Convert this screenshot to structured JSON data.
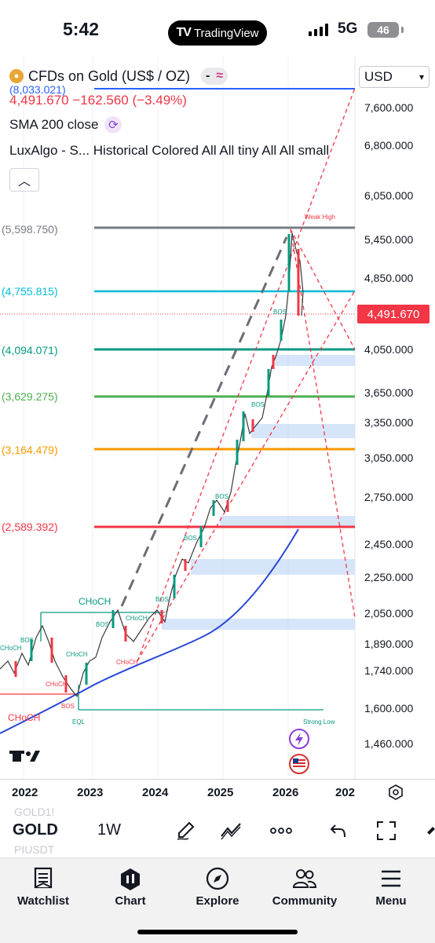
{
  "status": {
    "time": "5:42",
    "app_badge": "TradingView",
    "network": "5G",
    "battery": "46"
  },
  "legend": {
    "symbol_title": "CFDs on Gold (US$ / OZ)",
    "pill_btn1": "-",
    "pill_btn2": "≈",
    "top_value": "8,033.021",
    "price": "4,491.670",
    "change": "−162.560",
    "change_pct": "(−3.49%)",
    "sma": "SMA 200 close",
    "lux": "LuxAlgo - S...  Historical Colored All All tiny All All small"
  },
  "currency": "USD",
  "price_axis": {
    "ticks": [
      "7,600.000",
      "6,800.000",
      "6,050.000",
      "5,450.000",
      "4,850.000",
      "4,050.000",
      "3,650.000",
      "3,350.000",
      "3,050.000",
      "2,750.000",
      "2,450.000",
      "2,250.000",
      "2,050.000",
      "1,890.000",
      "1,740.000",
      "1,600.000",
      "1,460.000"
    ],
    "last_price": "4,491.670",
    "last_price_color": "#f23645"
  },
  "levels": [
    {
      "label": "(8,033.021)",
      "color": "#2962ff"
    },
    {
      "label": "(5,598.750)",
      "color": "#787b86"
    },
    {
      "label": "(4,755.815)",
      "color": "#00bcd4"
    },
    {
      "label": "(4,094.071)",
      "color": "#089981"
    },
    {
      "label": "(3,629.275)",
      "color": "#4caf50"
    },
    {
      "label": "(3,164.479)",
      "color": "#ff9800"
    },
    {
      "label": "(2,589.392)",
      "color": "#f23645"
    }
  ],
  "annotations": {
    "weak_high": "Weak High",
    "strong_low": "Strong Low",
    "eql": "EQL",
    "choch": "CHoCH",
    "bos": "BOS"
  },
  "years": [
    "2022",
    "2023",
    "2024",
    "2025",
    "2026",
    "202"
  ],
  "toolbar": {
    "ghost_top": "GOLD1!",
    "symbol": "GOLD",
    "interval": "1W",
    "ghost_bottom": "PIUSDT"
  },
  "tabs": [
    {
      "label": "Watchlist",
      "icon": "watchlist-icon"
    },
    {
      "label": "Chart",
      "icon": "chart-icon"
    },
    {
      "label": "Explore",
      "icon": "compass-icon"
    },
    {
      "label": "Community",
      "icon": "community-icon"
    },
    {
      "label": "Menu",
      "icon": "menu-icon"
    }
  ]
}
